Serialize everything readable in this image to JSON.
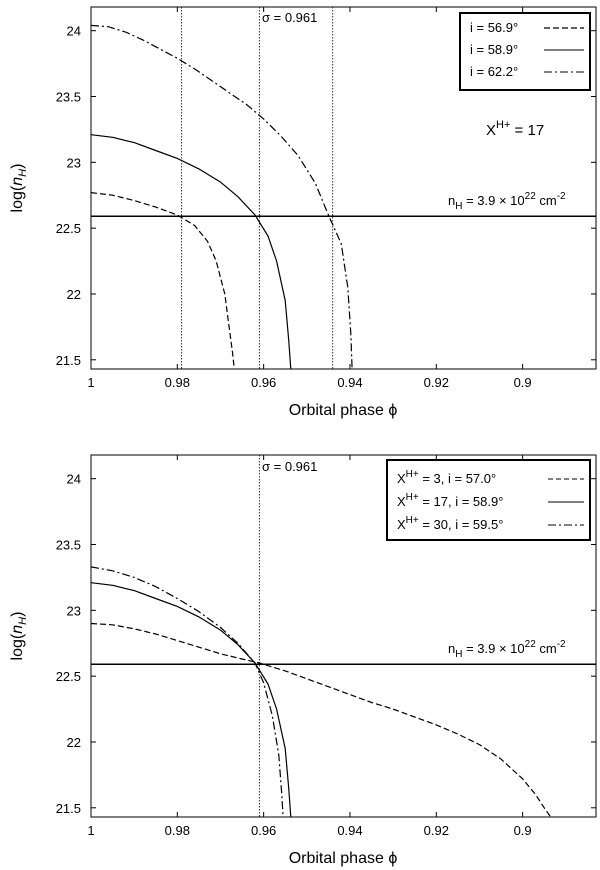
{
  "chart_data": [
    {
      "type": "line",
      "xlabel": "Orbital phase ϕ",
      "ylabel": "log(n_H)",
      "xlim": [
        1.0,
        0.883
      ],
      "ylim": [
        21.43,
        24.18
      ],
      "x_reversed": true,
      "xticks": [
        "1",
        "0.98",
        "0.96",
        "0.94",
        "0.92",
        "0.9"
      ],
      "xtick_values": [
        1.0,
        0.98,
        0.96,
        0.94,
        0.92,
        0.9
      ],
      "yticks": [
        "21.5",
        "22",
        "22.5",
        "23",
        "23.5",
        "24"
      ],
      "ytick_values": [
        21.5,
        22.0,
        22.5,
        23.0,
        23.5,
        24.0
      ],
      "grid": false,
      "legend_position": "top-right",
      "series": [
        {
          "name": "i = 56.9°",
          "style": "dashed",
          "x": [
            1.0,
            0.995,
            0.99,
            0.985,
            0.98,
            0.976,
            0.973,
            0.971,
            0.969,
            0.968,
            0.9672,
            0.9668
          ],
          "y": [
            22.77,
            22.75,
            22.71,
            22.66,
            22.6,
            22.52,
            22.4,
            22.25,
            22.0,
            21.75,
            21.55,
            21.43
          ]
        },
        {
          "name": "i = 58.9°",
          "style": "solid",
          "x": [
            1.0,
            0.995,
            0.99,
            0.985,
            0.98,
            0.975,
            0.97,
            0.966,
            0.962,
            0.959,
            0.957,
            0.955,
            0.9542,
            0.9537
          ],
          "y": [
            23.21,
            23.19,
            23.15,
            23.09,
            23.03,
            22.95,
            22.85,
            22.74,
            22.6,
            22.44,
            22.25,
            21.95,
            21.65,
            21.43
          ]
        },
        {
          "name": "i = 62.2°",
          "style": "dash-dot",
          "x": [
            1.0,
            0.996,
            0.992,
            0.988,
            0.984,
            0.98,
            0.976,
            0.972,
            0.968,
            0.964,
            0.96,
            0.956,
            0.952,
            0.948,
            0.945,
            0.942,
            0.9405,
            0.9398,
            0.9395
          ],
          "y": [
            24.04,
            24.03,
            23.99,
            23.93,
            23.86,
            23.79,
            23.71,
            23.62,
            23.53,
            23.44,
            23.33,
            23.2,
            23.05,
            22.84,
            22.6,
            22.38,
            22.05,
            21.7,
            21.43
          ]
        }
      ],
      "annotations": {
        "vline_label": "σ = 0.961",
        "vlines": [
          0.979,
          0.961,
          0.944
        ],
        "hline": 22.59,
        "hline_label": "n",
        "hline_label_sub": "H",
        "hline_label_eq": " = 3.9 × 10",
        "hline_label_sup": "22",
        "hline_label_unit": " cm",
        "hline_label_unit_sup": "-2",
        "xh_label_base": "X",
        "xh_label_sup": "H+",
        "xh_label_rest": " = 17"
      }
    },
    {
      "type": "line",
      "xlabel": "Orbital phase ϕ",
      "ylabel": "log(n_H)",
      "xlim": [
        1.0,
        0.883
      ],
      "ylim": [
        21.43,
        24.18
      ],
      "x_reversed": true,
      "xticks": [
        "1",
        "0.98",
        "0.96",
        "0.94",
        "0.92",
        "0.9"
      ],
      "xtick_values": [
        1.0,
        0.98,
        0.96,
        0.94,
        0.92,
        0.9
      ],
      "yticks": [
        "21.5",
        "22",
        "22.5",
        "23",
        "23.5",
        "24"
      ],
      "ytick_values": [
        21.5,
        22.0,
        22.5,
        23.0,
        23.5,
        24.0
      ],
      "grid": false,
      "legend_position": "top-right",
      "series": [
        {
          "name_base": "X",
          "name_sup": "H+",
          "name_rest": " = 3, i = 57.0°",
          "style": "dashed",
          "x": [
            1.0,
            0.995,
            0.99,
            0.985,
            0.98,
            0.975,
            0.97,
            0.965,
            0.961,
            0.955,
            0.95,
            0.945,
            0.94,
            0.935,
            0.93,
            0.925,
            0.92,
            0.915,
            0.91,
            0.905,
            0.9,
            0.897,
            0.895,
            0.8935
          ],
          "y": [
            22.9,
            22.89,
            22.86,
            22.82,
            22.77,
            22.72,
            22.67,
            22.63,
            22.6,
            22.54,
            22.48,
            22.42,
            22.36,
            22.3,
            22.25,
            22.19,
            22.13,
            22.06,
            21.98,
            21.87,
            21.72,
            21.6,
            21.5,
            21.43
          ]
        },
        {
          "name_base": "X",
          "name_sup": "H+",
          "name_rest": " = 17, i = 58.9°",
          "style": "solid",
          "x": [
            1.0,
            0.995,
            0.99,
            0.985,
            0.98,
            0.975,
            0.97,
            0.966,
            0.962,
            0.959,
            0.957,
            0.955,
            0.9542,
            0.9537
          ],
          "y": [
            23.21,
            23.19,
            23.15,
            23.09,
            23.03,
            22.95,
            22.85,
            22.74,
            22.6,
            22.44,
            22.25,
            21.95,
            21.65,
            21.43
          ]
        },
        {
          "name_base": "X",
          "name_sup": "H+",
          "name_rest": " = 30, i = 59.5°",
          "style": "dash-dot",
          "x": [
            1.0,
            0.995,
            0.99,
            0.985,
            0.98,
            0.975,
            0.97,
            0.966,
            0.962,
            0.96,
            0.958,
            0.9565,
            0.9558,
            0.9555
          ],
          "y": [
            23.33,
            23.3,
            23.25,
            23.18,
            23.09,
            22.99,
            22.87,
            22.75,
            22.6,
            22.45,
            22.2,
            21.9,
            21.6,
            21.43
          ]
        }
      ],
      "annotations": {
        "vline_label": "σ = 0.961",
        "vlines": [
          0.961
        ],
        "hline": 22.59,
        "hline_label": "n",
        "hline_label_sub": "H",
        "hline_label_eq": " = 3.9 × 10",
        "hline_label_sup": "22",
        "hline_label_unit": " cm",
        "hline_label_unit_sup": "-2"
      }
    }
  ]
}
